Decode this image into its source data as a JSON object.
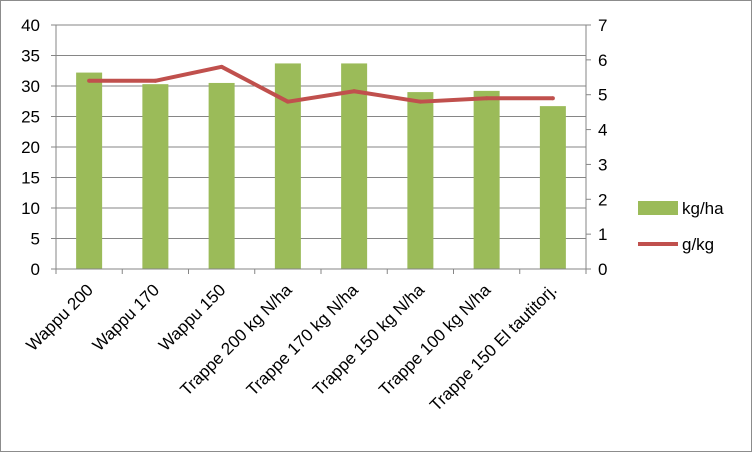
{
  "chart_data": {
    "type": "bar",
    "categories": [
      "Wappu 200",
      "Wappu 170",
      "Wappu 150",
      "Trappe 200 kg N/ha",
      "Trappe 170 kg N/ha",
      "Trappe 150 kg N/ha",
      "Trappe 100 kg N/ha",
      "Trappe 150 El tautitorj."
    ],
    "series": [
      {
        "name": "kg/ha",
        "type": "bar",
        "axis": "left",
        "color": "#9bbb59",
        "values": [
          32.2,
          30.3,
          30.5,
          33.7,
          33.7,
          29.0,
          29.2,
          26.7
        ]
      },
      {
        "name": "g/kg",
        "type": "line",
        "axis": "right",
        "color": "#c0504d",
        "values": [
          5.4,
          5.4,
          5.8,
          4.8,
          5.1,
          4.8,
          4.9,
          4.9
        ]
      }
    ],
    "y_left": {
      "min": 0,
      "max": 40,
      "ticks": [
        "0",
        "5",
        "10",
        "15",
        "20",
        "25",
        "30",
        "35",
        "40"
      ]
    },
    "y_right": {
      "min": 0,
      "max": 7,
      "ticks": [
        "0",
        "1",
        "2",
        "3",
        "4",
        "5",
        "6",
        "7"
      ]
    },
    "grid": true,
    "legend_position": "right"
  }
}
